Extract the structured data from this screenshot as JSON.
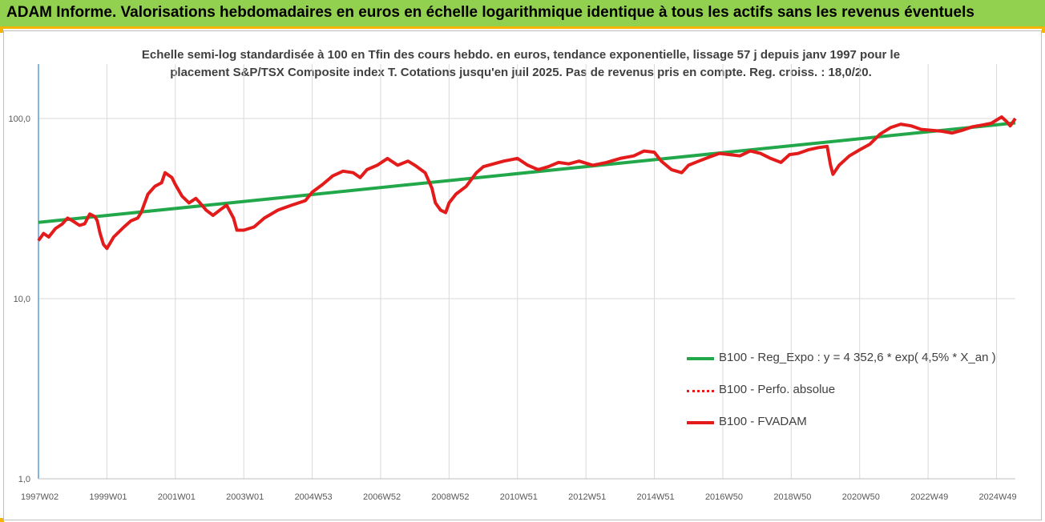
{
  "header": {
    "title": "ADAM Informe. Valorisations hebdomadaires en euros en échelle logarithmique identique à tous les actifs sans les revenus éventuels"
  },
  "colors": {
    "banner": "#92d050",
    "banner_border": "#f4b400",
    "trend_line": "#22a84a",
    "fvadam_line": "#e31b1b",
    "perfo_line": "#e31b1b",
    "grid": "#d9d9d9",
    "axis": "#5b9bd5"
  },
  "chart_data": {
    "type": "line",
    "title_line1": "Echelle semi-log standardisée à 100 en Tfin des cours hebdo. en euros, tendance exponentielle, lissage 57 j depuis janv 1997 pour le",
    "title_line2": "placement S&P/TSX Composite index T. Cotations jusqu'en juil 2025. Pas de revenus pris en compte. Reg. croiss. : 18,0/20.",
    "y_scale": "log",
    "ylim": [
      1,
      100
    ],
    "y_ticks": [
      100,
      10,
      1
    ],
    "y_tick_labels": [
      "100,0",
      "10,0",
      "1,0"
    ],
    "x_tick_labels": [
      "1997W02",
      "1999W01",
      "2001W01",
      "2003W01",
      "2004W53",
      "2006W52",
      "2008W52",
      "2010W51",
      "2012W51",
      "2014W51",
      "2016W50",
      "2018W50",
      "2020W50",
      "2022W49",
      "2024W49"
    ],
    "x_tick_years": [
      1997.0,
      1999.0,
      2001.0,
      2003.0,
      2005.0,
      2007.0,
      2009.0,
      2011.0,
      2013.0,
      2015.0,
      2017.0,
      2019.0,
      2021.0,
      2023.0,
      2025.0
    ],
    "x_range": [
      1997.0,
      2025.55
    ],
    "grid": true,
    "legend_position": "bottom-right",
    "series": [
      {
        "name": "B100 - Reg_Expo : y = 4 352,6 * exp( 4,5% *  X_an )",
        "style": "solid-thick",
        "color": "#22a84a",
        "x": [
          1997.0,
          2025.55
        ],
        "values": [
          26.5,
          94.5
        ]
      },
      {
        "name": "B100 - Perfo. absolue",
        "style": "dotted",
        "color": "#e31b1b",
        "x": [],
        "values": []
      },
      {
        "name": "B100 - FVADAM",
        "style": "solid-thick",
        "color": "#e31b1b",
        "x": [
          1997.0,
          1997.15,
          1997.3,
          1997.5,
          1997.7,
          1997.85,
          1998.0,
          1998.2,
          1998.35,
          1998.5,
          1998.65,
          1998.72,
          1998.8,
          1998.9,
          1999.0,
          1999.2,
          1999.5,
          1999.7,
          1999.9,
          2000.0,
          2000.2,
          2000.4,
          2000.6,
          2000.7,
          2000.9,
          2001.0,
          2001.2,
          2001.4,
          2001.6,
          2001.72,
          2001.9,
          2002.1,
          2002.3,
          2002.5,
          2002.7,
          2002.8,
          2003.0,
          2003.3,
          2003.6,
          2004.0,
          2004.4,
          2004.8,
          2005.0,
          2005.3,
          2005.6,
          2005.9,
          2006.2,
          2006.4,
          2006.6,
          2006.9,
          2007.2,
          2007.5,
          2007.8,
          2008.0,
          2008.3,
          2008.5,
          2008.6,
          2008.75,
          2008.9,
          2009.0,
          2009.2,
          2009.5,
          2009.8,
          2010.0,
          2010.3,
          2010.6,
          2011.0,
          2011.3,
          2011.6,
          2011.9,
          2012.2,
          2012.5,
          2012.8,
          2013.2,
          2013.6,
          2014.0,
          2014.4,
          2014.7,
          2015.0,
          2015.2,
          2015.5,
          2015.8,
          2016.0,
          2016.3,
          2016.6,
          2016.9,
          2017.2,
          2017.5,
          2017.8,
          2018.1,
          2018.4,
          2018.7,
          2018.95,
          2019.2,
          2019.5,
          2019.8,
          2020.05,
          2020.15,
          2020.22,
          2020.4,
          2020.7,
          2021.0,
          2021.3,
          2021.6,
          2021.9,
          2022.2,
          2022.5,
          2022.8,
          2023.1,
          2023.4,
          2023.7,
          2024.0,
          2024.3,
          2024.6,
          2024.85,
          2025.0,
          2025.15,
          2025.3,
          2025.4,
          2025.55
        ],
        "values": [
          21.0,
          23.0,
          22.0,
          24.5,
          26.0,
          28.0,
          27.0,
          25.5,
          26.0,
          29.5,
          28.5,
          27.0,
          23.0,
          20.0,
          19.0,
          22.0,
          25.0,
          27.0,
          28.0,
          30.0,
          38.0,
          42.0,
          44.0,
          50.0,
          47.0,
          43.0,
          37.0,
          34.0,
          36.0,
          34.0,
          31.0,
          29.0,
          31.0,
          33.0,
          28.0,
          24.0,
          24.0,
          25.0,
          28.0,
          31.0,
          33.0,
          35.0,
          39.0,
          43.0,
          48.0,
          51.0,
          50.0,
          47.0,
          52.0,
          55.0,
          60.0,
          55.0,
          58.0,
          55.0,
          50.0,
          41.0,
          34.0,
          31.0,
          30.0,
          34.0,
          38.0,
          42.0,
          50.0,
          54.0,
          56.0,
          58.0,
          60.0,
          55.0,
          52.0,
          54.0,
          57.0,
          56.0,
          58.0,
          55.0,
          57.0,
          60.0,
          62.0,
          66.0,
          65.0,
          58.0,
          52.0,
          50.0,
          55.0,
          58.0,
          61.0,
          64.0,
          63.0,
          62.0,
          66.0,
          64.0,
          60.0,
          57.0,
          63.0,
          64.0,
          67.0,
          69.0,
          70.0,
          55.0,
          49.0,
          55.0,
          62.0,
          67.0,
          72.0,
          82.0,
          89.0,
          93.0,
          91.0,
          87.0,
          86.0,
          85.0,
          83.0,
          86.0,
          90.0,
          92.0,
          94.0,
          98.0,
          102.0,
          96.0,
          91.0,
          100.0
        ]
      }
    ]
  }
}
